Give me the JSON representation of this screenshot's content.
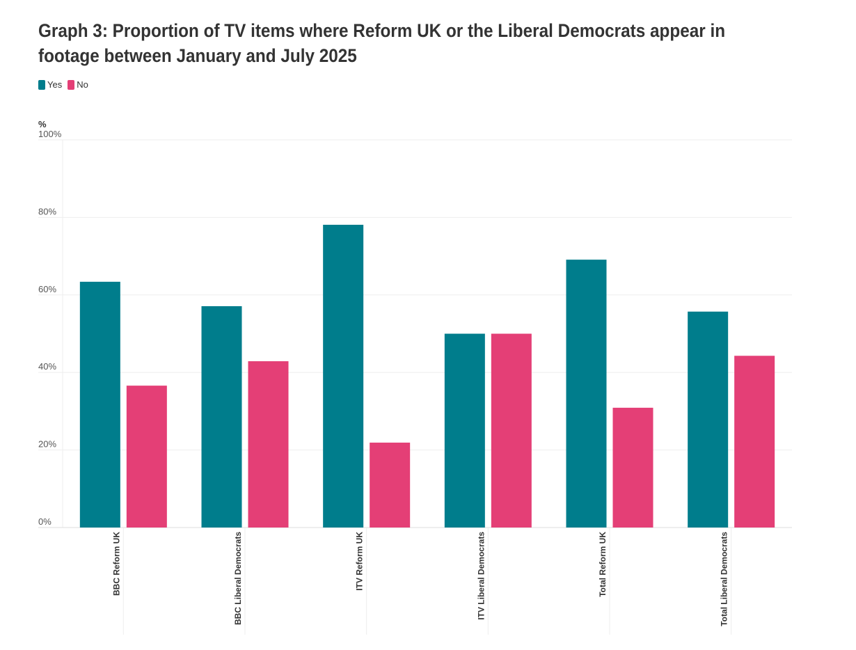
{
  "chart_data": {
    "type": "bar",
    "title": "Graph 3: Proportion of TV items where Reform UK or the Liberal Democrats appear in footage between January and July 2025",
    "ylabel": "%",
    "xlabel": "",
    "ylim": [
      0,
      100
    ],
    "yticks": [
      "0%",
      "20%",
      "40%",
      "60%",
      "80%",
      "100%"
    ],
    "ytick_values": [
      0,
      20,
      40,
      60,
      80,
      100
    ],
    "grid": true,
    "legend_position": "top-left",
    "categories": [
      "BBC Reform UK",
      "BBC Liberal Democrats",
      "ITV Reform UK",
      "ITV Liberal Democrats",
      "Total Reform UK",
      "Total Liberal Democrats"
    ],
    "series": [
      {
        "name": "Yes",
        "color": "#007d8c",
        "values": [
          63.4,
          57.1,
          78.1,
          50,
          69.1,
          55.7
        ]
      },
      {
        "name": "No",
        "color": "#e43f76",
        "values": [
          36.6,
          42.9,
          21.9,
          50,
          30.9,
          44.3
        ]
      }
    ]
  }
}
